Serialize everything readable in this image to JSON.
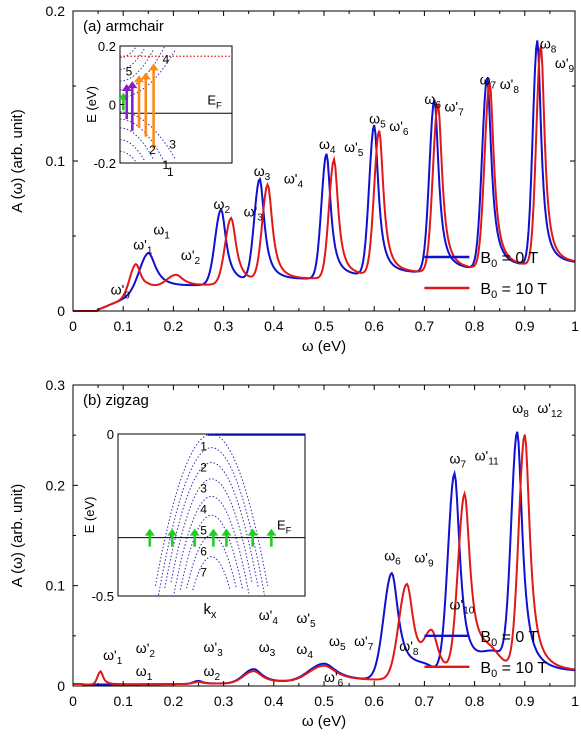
{
  "colors": {
    "b0": "#1010d0",
    "b10": "#e01818",
    "green": "#22cc22",
    "purple": "#8a1ec8",
    "orange": "#ff8a1a",
    "inset_dot": "#3030b0",
    "ef_red": "#e01818"
  },
  "chart_data": [
    {
      "type": "line",
      "panel_label": "(a) armchair",
      "xlabel": "ω (eV)",
      "ylabel": "A (ω) (arb. unit)",
      "xlim": [
        0,
        1
      ],
      "ylim": [
        0,
        0.2
      ],
      "x_ticks": [
        "0",
        "0.1",
        "0.2",
        "0.3",
        "0.4",
        "0.5",
        "0.6",
        "0.7",
        "0.8",
        "0.9",
        "1"
      ],
      "y_ticks": [
        "0",
        "0.1",
        "0.2"
      ],
      "legend_position": "bottom-right",
      "series": [
        {
          "name": "B0 = 0 T",
          "color_key": "b0",
          "baseline": 0.012,
          "peaks": [
            [
              0.15,
              0.024,
              0.018
            ],
            [
              0.295,
              0.05,
              0.012
            ],
            [
              0.372,
              0.068,
              0.011
            ],
            [
              0.505,
              0.083,
              0.01
            ],
            [
              0.6,
              0.1,
              0.01
            ],
            [
              0.72,
              0.115,
              0.01
            ],
            [
              0.825,
              0.127,
              0.01
            ],
            [
              0.925,
              0.15,
              0.009
            ]
          ]
        },
        {
          "name": "B0 = 10 T",
          "color_key": "b10",
          "baseline": 0.012,
          "peaks": [
            [
              0.125,
              0.02,
              0.012
            ],
            [
              0.205,
              0.008,
              0.018
            ],
            [
              0.315,
              0.044,
              0.012
            ],
            [
              0.388,
              0.064,
              0.011
            ],
            [
              0.52,
              0.079,
              0.01
            ],
            [
              0.61,
              0.096,
              0.01
            ],
            [
              0.727,
              0.112,
              0.01
            ],
            [
              0.83,
              0.124,
              0.01
            ],
            [
              0.932,
              0.147,
              0.009
            ]
          ]
        }
      ],
      "peak_labels": [
        {
          "base": "ω",
          "sub": "8",
          "prime": false,
          "x": 0.93,
          "y": 0.175,
          "color_key": null
        },
        {
          "base": "ω",
          "sub": "9",
          "prime": true,
          "x": 0.96,
          "y": 0.162,
          "color_key": null
        },
        {
          "base": "ω",
          "sub": "7",
          "prime": false,
          "x": 0.81,
          "y": 0.151,
          "color_key": null
        },
        {
          "base": "ω",
          "sub": "8",
          "prime": true,
          "x": 0.85,
          "y": 0.148,
          "color_key": null
        },
        {
          "base": "ω",
          "sub": "6",
          "prime": false,
          "x": 0.7,
          "y": 0.138,
          "color_key": null
        },
        {
          "base": "ω",
          "sub": "7",
          "prime": true,
          "x": 0.74,
          "y": 0.133,
          "color_key": null
        },
        {
          "base": "ω",
          "sub": "5",
          "prime": false,
          "x": 0.59,
          "y": 0.125,
          "color_key": null
        },
        {
          "base": "ω",
          "sub": "6",
          "prime": true,
          "x": 0.63,
          "y": 0.12,
          "color_key": null
        },
        {
          "base": "ω",
          "sub": "4",
          "prime": false,
          "x": 0.49,
          "y": 0.108,
          "color_key": null
        },
        {
          "base": "ω",
          "sub": "5",
          "prime": true,
          "x": 0.54,
          "y": 0.106,
          "color_key": null
        },
        {
          "base": "ω",
          "sub": "3",
          "prime": false,
          "x": 0.36,
          "y": 0.09,
          "color_key": null
        },
        {
          "base": "ω",
          "sub": "4",
          "prime": true,
          "x": 0.42,
          "y": 0.085,
          "color_key": null
        },
        {
          "base": "ω",
          "sub": "2",
          "prime": false,
          "x": 0.28,
          "y": 0.068,
          "color_key": null
        },
        {
          "base": "ω",
          "sub": "3",
          "prime": true,
          "x": 0.34,
          "y": 0.063,
          "color_key": null
        },
        {
          "base": "ω",
          "sub": "1",
          "prime": false,
          "x": 0.16,
          "y": 0.051,
          "color_key": null
        },
        {
          "base": "ω",
          "sub": "1",
          "prime": true,
          "x": 0.12,
          "y": 0.041,
          "color_key": "purple"
        },
        {
          "base": "ω",
          "sub": "2",
          "prime": true,
          "x": 0.215,
          "y": 0.034,
          "color_key": "orange"
        },
        {
          "base": "ω",
          "sub": "0",
          "prime": true,
          "x": 0.075,
          "y": 0.011,
          "color_key": "green"
        }
      ],
      "inset": {
        "ylabel": "E (eV)",
        "y_ticks": [
          "0.2",
          "0",
          "-0.2"
        ],
        "x_ticks": [
          "1"
        ],
        "ef_label": "E",
        "ef_sub": "F",
        "band_labels": [
          {
            "text": "4",
            "kx": 0.38,
            "e": 0.14
          },
          {
            "text": "5",
            "kx": 0.05,
            "e": 0.1
          },
          {
            "text": "2",
            "kx": 0.26,
            "e": -0.17
          },
          {
            "text": "3",
            "kx": 0.44,
            "e": -0.15
          },
          {
            "text": "1",
            "kx": 0.38,
            "e": -0.22
          }
        ],
        "transitions": [
          {
            "kx": 0.03,
            "e0": -0.02,
            "e1": 0.04,
            "color_key": "green"
          },
          {
            "kx": 0.06,
            "e0": -0.05,
            "e1": 0.07,
            "color_key": "purple"
          },
          {
            "kx": 0.11,
            "e0": -0.09,
            "e1": 0.08,
            "color_key": "purple"
          },
          {
            "kx": 0.17,
            "e0": -0.08,
            "e1": 0.1,
            "color_key": "orange"
          },
          {
            "kx": 0.23,
            "e0": -0.11,
            "e1": 0.11,
            "color_key": "orange"
          },
          {
            "kx": 0.3,
            "e0": -0.15,
            "e1": 0.14,
            "color_key": "orange"
          }
        ]
      }
    },
    {
      "type": "line",
      "panel_label": "(b) zigzag",
      "xlabel": "ω (eV)",
      "ylabel": "A (ω) (arb. unit)",
      "xlim": [
        0,
        1
      ],
      "ylim": [
        0,
        0.3
      ],
      "x_ticks": [
        "0",
        "0.1",
        "0.2",
        "0.3",
        "0.4",
        "0.5",
        "0.6",
        "0.7",
        "0.8",
        "0.9",
        "1"
      ],
      "y_ticks": [
        "0",
        "0.1",
        "0.2",
        "0.3"
      ],
      "legend_position": "bottom-right",
      "series": [
        {
          "name": "B0 = 0 T",
          "color_key": "b0",
          "baseline": 0.0,
          "peaks": [
            [
              0.25,
              0.003,
              0.01
            ],
            [
              0.36,
              0.014,
              0.02
            ],
            [
              0.5,
              0.018,
              0.03
            ],
            [
              0.635,
              0.105,
              0.016
            ],
            [
              0.76,
              0.2,
              0.013
            ],
            [
              0.885,
              0.235,
              0.012
            ],
            [
              0.7,
              0.01,
              0.03
            ],
            [
              0.84,
              0.02,
              0.03
            ]
          ]
        },
        {
          "name": "B0 = 10 T",
          "color_key": "b10",
          "baseline": 0.0,
          "peaks": [
            [
              0.055,
              0.013,
              0.006
            ],
            [
              0.25,
              0.002,
              0.01
            ],
            [
              0.36,
              0.012,
              0.02
            ],
            [
              0.5,
              0.016,
              0.03
            ],
            [
              0.665,
              0.095,
              0.016
            ],
            [
              0.715,
              0.04,
              0.015
            ],
            [
              0.78,
              0.175,
              0.013
            ],
            [
              0.9,
              0.235,
              0.012
            ],
            [
              0.83,
              0.02,
              0.03
            ]
          ]
        }
      ],
      "peak_labels": [
        {
          "base": "ω",
          "sub": "8",
          "prime": false,
          "x": 0.875,
          "y": 0.272,
          "color_key": null
        },
        {
          "base": "ω",
          "sub": "12",
          "prime": true,
          "x": 0.925,
          "y": 0.272,
          "color_key": null
        },
        {
          "base": "ω",
          "sub": "7",
          "prime": false,
          "x": 0.75,
          "y": 0.222,
          "color_key": null
        },
        {
          "base": "ω",
          "sub": "11",
          "prime": true,
          "x": 0.8,
          "y": 0.225,
          "color_key": null
        },
        {
          "base": "ω",
          "sub": "6",
          "prime": false,
          "x": 0.62,
          "y": 0.125,
          "color_key": null
        },
        {
          "base": "ω",
          "sub": "9",
          "prime": true,
          "x": 0.68,
          "y": 0.123,
          "color_key": null
        },
        {
          "base": "ω",
          "sub": "10",
          "prime": true,
          "x": 0.75,
          "y": 0.076,
          "color_key": null
        },
        {
          "base": "ω",
          "sub": "8",
          "prime": true,
          "x": 0.65,
          "y": 0.035,
          "color_key": null
        },
        {
          "base": "ω",
          "sub": "5",
          "prime": false,
          "x": 0.51,
          "y": 0.04,
          "color_key": null
        },
        {
          "base": "ω",
          "sub": "7",
          "prime": true,
          "x": 0.56,
          "y": 0.04,
          "color_key": null
        },
        {
          "base": "ω",
          "sub": "6",
          "prime": true,
          "x": 0.5,
          "y": 0.004,
          "color_key": null
        },
        {
          "base": "ω",
          "sub": "4",
          "prime": true,
          "x": 0.37,
          "y": 0.066,
          "color_key": null
        },
        {
          "base": "ω",
          "sub": "3",
          "prime": false,
          "x": 0.37,
          "y": 0.034,
          "color_key": null
        },
        {
          "base": "ω",
          "sub": "5",
          "prime": true,
          "x": 0.445,
          "y": 0.063,
          "color_key": null
        },
        {
          "base": "ω",
          "sub": "4",
          "prime": false,
          "x": 0.445,
          "y": 0.032,
          "color_key": null
        },
        {
          "base": "ω",
          "sub": "3",
          "prime": true,
          "x": 0.26,
          "y": 0.034,
          "color_key": null
        },
        {
          "base": "ω",
          "sub": "2",
          "prime": false,
          "x": 0.26,
          "y": 0.01,
          "color_key": null
        },
        {
          "base": "ω",
          "sub": "2",
          "prime": true,
          "x": 0.125,
          "y": 0.033,
          "color_key": null
        },
        {
          "base": "ω",
          "sub": "1",
          "prime": false,
          "x": 0.125,
          "y": 0.01,
          "color_key": null
        },
        {
          "base": "ω",
          "sub": "1",
          "prime": true,
          "x": 0.06,
          "y": 0.026,
          "color_key": "green"
        }
      ],
      "inset": {
        "ylabel": "E (eV)",
        "xlabel": "k",
        "xlabel_sub": "x",
        "y_ticks": [
          "0",
          "-0.5"
        ],
        "ef_label": "E",
        "ef_sub": "F",
        "band_labels": [
          "1",
          "2",
          "3",
          "4",
          "5",
          "6",
          "7"
        ],
        "arrows_kx": [
          0.17,
          0.29,
          0.41,
          0.51,
          0.58,
          0.72,
          0.82
        ]
      }
    }
  ]
}
